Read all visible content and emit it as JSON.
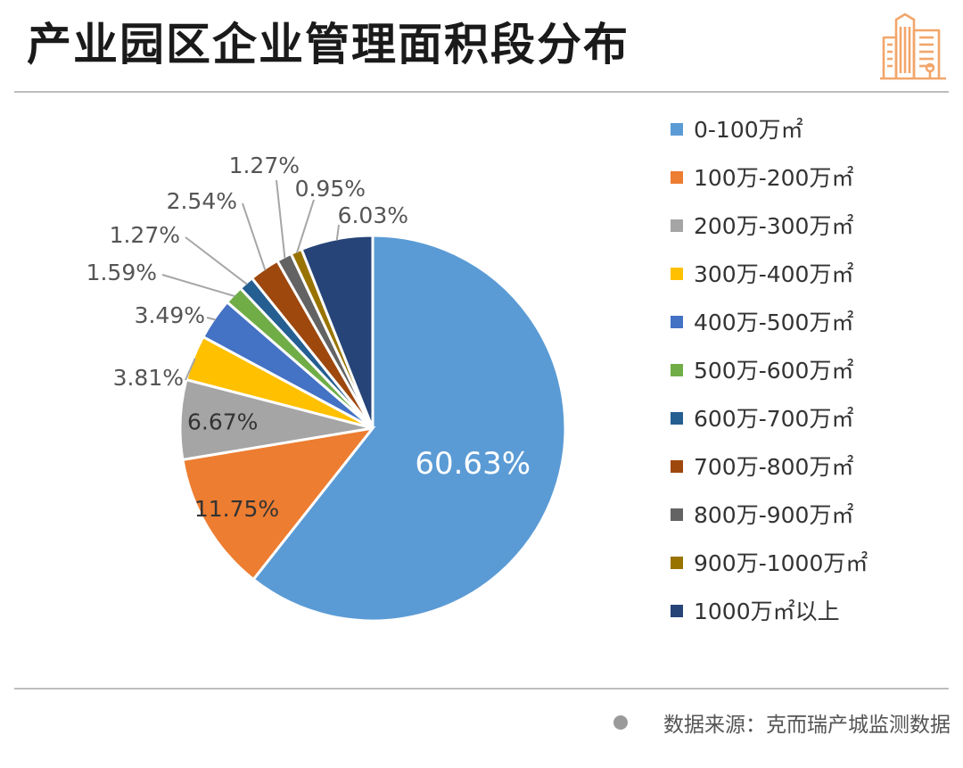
{
  "header": {
    "title": "产业园区企业管理面积段分布",
    "logo_icon": "buildings-icon",
    "accent": "#F2A66A"
  },
  "chart_data": {
    "type": "pie",
    "title": "产业园区企业管理面积段分布",
    "slices": [
      {
        "label": "0-100万㎡",
        "value": 60.63,
        "display": "60.63%",
        "color": "#5B9BD5"
      },
      {
        "label": "100万-200万㎡",
        "value": 11.75,
        "display": "11.75%",
        "color": "#ED7D31"
      },
      {
        "label": "200万-300万㎡",
        "value": 6.67,
        "display": "6.67%",
        "color": "#A5A5A5"
      },
      {
        "label": "300万-400万㎡",
        "value": 3.81,
        "display": "3.81%",
        "color": "#FFC000"
      },
      {
        "label": "400万-500万㎡",
        "value": 3.49,
        "display": "3.49%",
        "color": "#4472C4"
      },
      {
        "label": "500万-600万㎡",
        "value": 1.59,
        "display": "1.59%",
        "color": "#70AD47"
      },
      {
        "label": "600万-700万㎡",
        "value": 1.27,
        "display": "1.27%",
        "color": "#255E91"
      },
      {
        "label": "700万-800万㎡",
        "value": 2.54,
        "display": "2.54%",
        "color": "#9E480E"
      },
      {
        "label": "800万-900万㎡",
        "value": 1.27,
        "display": "1.27%",
        "color": "#636363"
      },
      {
        "label": "900万-1000万㎡",
        "value": 0.95,
        "display": "0.95%",
        "color": "#997300"
      },
      {
        "label": "1000万㎡以上",
        "value": 6.03,
        "display": "6.03%",
        "color": "#264478"
      }
    ],
    "start_angle_deg": 0,
    "direction": "clockwise",
    "legend_position": "right"
  },
  "footer": {
    "source": "数据来源：克而瑞产城监测数据"
  }
}
